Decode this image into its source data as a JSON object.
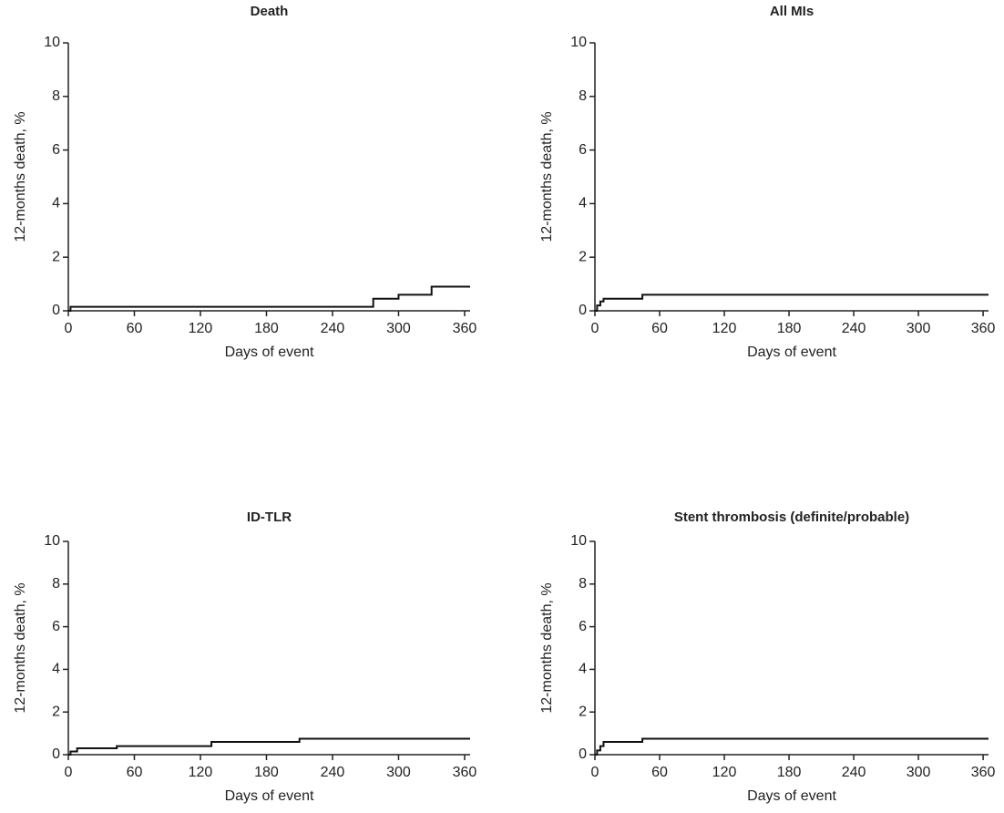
{
  "chart_data": [
    {
      "type": "line",
      "step": true,
      "title": "Death",
      "xlabel": "Days of event",
      "ylabel": "12-months death, %",
      "color": "#111111",
      "x": [
        0,
        2,
        277,
        300,
        330,
        365
      ],
      "values": [
        0,
        0.15,
        0.45,
        0.6,
        0.9,
        0.9
      ],
      "xlim": [
        0,
        365
      ],
      "xticks": [
        0,
        60,
        120,
        180,
        240,
        300,
        360
      ],
      "ylim": [
        0,
        10
      ],
      "yticks": [
        0,
        2,
        4,
        6,
        8,
        10
      ]
    },
    {
      "type": "line",
      "step": true,
      "title": "All MIs",
      "xlabel": "Days of event",
      "ylabel": "12-months death, %",
      "color": "#111111",
      "x": [
        0,
        2,
        5,
        8,
        44,
        365
      ],
      "values": [
        0,
        0.2,
        0.35,
        0.45,
        0.6,
        0.6
      ],
      "xlim": [
        0,
        365
      ],
      "xticks": [
        0,
        60,
        120,
        180,
        240,
        300,
        360
      ],
      "ylim": [
        0,
        10
      ],
      "yticks": [
        0,
        2,
        4,
        6,
        8,
        10
      ]
    },
    {
      "type": "line",
      "step": true,
      "title": "ID-TLR",
      "xlabel": "Days of event",
      "ylabel": "12-months death, %",
      "color": "#111111",
      "x": [
        0,
        2,
        8,
        44,
        130,
        210,
        365
      ],
      "values": [
        0,
        0.15,
        0.3,
        0.4,
        0.6,
        0.75,
        0.75
      ],
      "xlim": [
        0,
        365
      ],
      "xticks": [
        0,
        60,
        120,
        180,
        240,
        300,
        360
      ],
      "ylim": [
        0,
        10
      ],
      "yticks": [
        0,
        2,
        4,
        6,
        8,
        10
      ]
    },
    {
      "type": "line",
      "step": true,
      "title": "Stent thrombosis (definite/probable)",
      "xlabel": "Days of event",
      "ylabel": "12-months death, %",
      "color": "#111111",
      "x": [
        0,
        2,
        5,
        8,
        44,
        365
      ],
      "values": [
        0,
        0.2,
        0.4,
        0.6,
        0.75,
        0.75
      ],
      "xlim": [
        0,
        365
      ],
      "xticks": [
        0,
        60,
        120,
        180,
        240,
        300,
        360
      ],
      "ylim": [
        0,
        10
      ],
      "yticks": [
        0,
        2,
        4,
        6,
        8,
        10
      ]
    }
  ]
}
